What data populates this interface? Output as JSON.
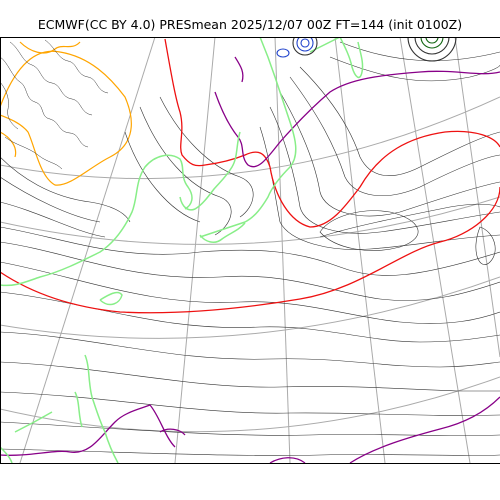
{
  "title": "ECMWF(CC BY 4.0) PRESmean 2025/12/07 00Z FT=144 (init 0100Z)",
  "map": {
    "variable": "PRESmean",
    "colors": {
      "isobar": "#333333",
      "isobar_highlight_red": "#ee1111",
      "isobar_highlight_purple": "#880088",
      "high_pressure_rings": "#2244cc",
      "coastline": "#88ee88",
      "terrain_contour": "#ffa500",
      "graticule": "#aaaaaa",
      "border": "#000000"
    }
  }
}
